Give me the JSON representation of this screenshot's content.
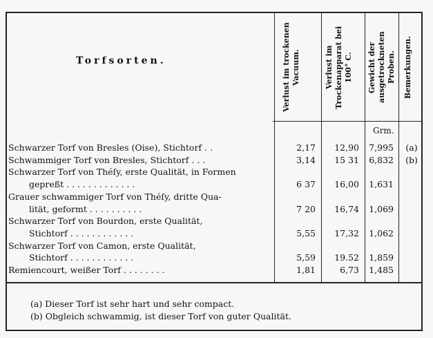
{
  "header": {
    "title": "Torfsorten.",
    "col1": "Verlust im trockenen Vacuum.",
    "col2": "Verlust im Trockenapparat bei 100° C.",
    "col3": "Gewicht der ausgetrockneten Proben.",
    "col4": "Bemerkungen.",
    "unit": "Grm."
  },
  "rows": [
    {
      "lines": [
        "Schwarzer Torf von Bresles (Oise), Stichtorf . ."
      ],
      "v1": "2,17",
      "v2": "12,90",
      "v3": "7,995",
      "note": "(a)"
    },
    {
      "lines": [
        "Schwammiger Torf von Bresles, Stichtorf . . ."
      ],
      "v1": "3,14",
      "v2": "15 31",
      "v3": "6,832",
      "note": "(b)"
    },
    {
      "lines": [
        "Schwarzer Torf von Théſy, erste Qualität, in Formen",
        "gepreßt . . . . . . . . . . . . ."
      ],
      "v1": "6 37",
      "v2": "16,00",
      "v3": "1,631",
      "note": ""
    },
    {
      "lines": [
        "Grauer schwammiger Torf von Théſy, dritte Qua-",
        "lität, geformt . . . . . . . . . ."
      ],
      "v1": "7 20",
      "v2": "16,74",
      "v3": "1,069",
      "note": ""
    },
    {
      "lines": [
        "Schwarzer Torf von Bourdon, erste Qualität,",
        "Stichtorf . . . . . . . . . . . ."
      ],
      "v1": "5,55",
      "v2": "17,32",
      "v3": "1,062",
      "note": ""
    },
    {
      "lines": [
        "Schwarzer Torf von Camon, erste Qualität,",
        "Stichtorf . . . . . . . . . . . ."
      ],
      "v1": "5,59",
      "v2": "19.52",
      "v3": "1,859",
      "note": ""
    },
    {
      "lines": [
        "Remiencourt, weißer Torf . . . . . . . ."
      ],
      "v1": "1,81",
      "v2": "6,73",
      "v3": "1,485",
      "note": ""
    }
  ],
  "footnotes": [
    "(a) Dieser Torf ist sehr hart und sehr compact.",
    "(b) Obgleich schwammig, ist dieser Torf von guter Qualität."
  ]
}
